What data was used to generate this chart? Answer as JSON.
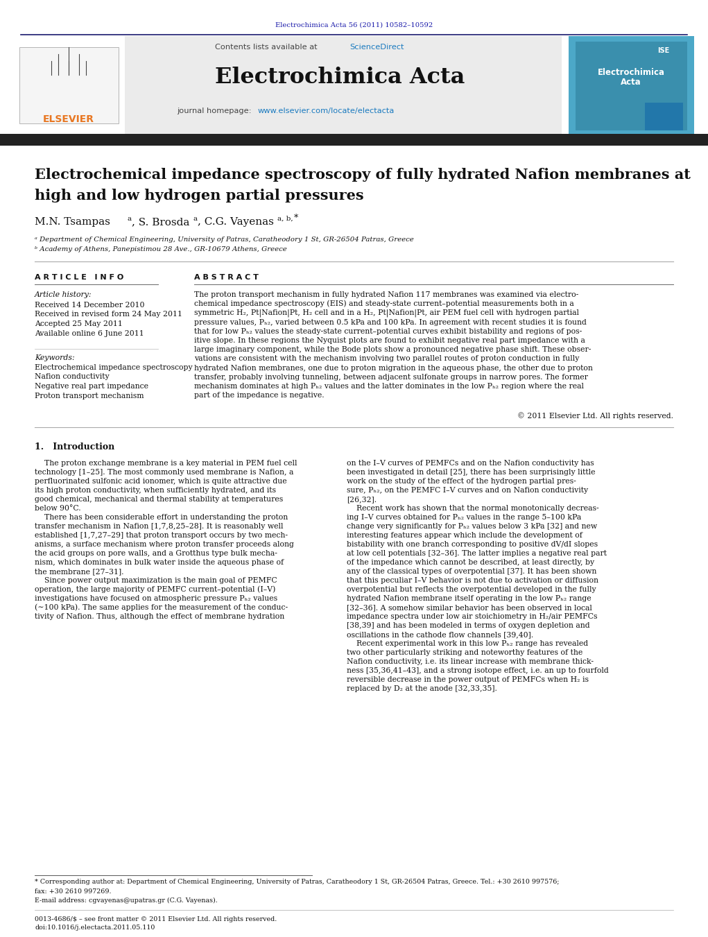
{
  "journal_ref": "Electrochimica Acta 56 (2011) 10582–10592",
  "journal_ref_color": "#1a1aaa",
  "contents_text": "Contents lists available at ",
  "sciencedirect_text": "ScienceDirect",
  "sciencedirect_color": "#1a7abf",
  "journal_name": "Electrochimica Acta",
  "journal_homepage_prefix": "journal homepage: ",
  "journal_homepage_url": "www.elsevier.com/locate/electacta",
  "journal_homepage_url_color": "#1a7abf",
  "header_bg": "#e8e8e8",
  "dark_bar_color": "#333333",
  "paper_title_line1": "Electrochemical impedance spectroscopy of fully hydrated Nafion membranes at",
  "paper_title_line2": "high and low hydrogen partial pressures",
  "article_info_header": "A R T I C L E   I N F O",
  "abstract_header": "A B S T R A C T",
  "article_history_label": "Article history:",
  "received_1": "Received 14 December 2010",
  "received_revised": "Received in revised form 24 May 2011",
  "accepted": "Accepted 25 May 2011",
  "available_online": "Available online 6 June 2011",
  "keywords_label": "Keywords:",
  "keyword_1": "Electrochemical impedance spectroscopy",
  "keyword_2": "Nafion conductivity",
  "keyword_3": "Negative real part impedance",
  "keyword_4": "Proton transport mechanism",
  "abstract_lines": [
    "The proton transport mechanism in fully hydrated Nafion 117 membranes was examined via electro-",
    "chemical impedance spectroscopy (EIS) and steady-state current–potential measurements both in a",
    "symmetric H₂, Pt|Nafion|Pt, H₂ cell and in a H₂, Pt|Nafion|Pt, air PEM fuel cell with hydrogen partial",
    "pressure values, Pₕ₂, varied between 0.5 kPa and 100 kPa. In agreement with recent studies it is found",
    "that for low Pₕ₂ values the steady-state current–potential curves exhibit bistability and regions of pos-",
    "itive slope. In these regions the Nyquist plots are found to exhibit negative real part impedance with a",
    "large imaginary component, while the Bode plots show a pronounced negative phase shift. These obser-",
    "vations are consistent with the mechanism involving two parallel routes of proton conduction in fully",
    "hydrated Nafion membranes, one due to proton migration in the aqueous phase, the other due to proton",
    "transfer, probably involving tunneling, between adjacent sulfonate groups in narrow pores. The former",
    "mechanism dominates at high Pₕ₂ values and the latter dominates in the low Pₕ₂ region where the real",
    "part of the impedance is negative."
  ],
  "copyright": "© 2011 Elsevier Ltd. All rights reserved.",
  "intro_header": "1.   Introduction",
  "intro_col1_lines": [
    "    The proton exchange membrane is a key material in PEM fuel cell",
    "technology [1–25]. The most commonly used membrane is Nafion, a",
    "perfluorinated sulfonic acid ionomer, which is quite attractive due",
    "its high proton conductivity, when sufficiently hydrated, and its",
    "good chemical, mechanical and thermal stability at temperatures",
    "below 90°C.",
    "    There has been considerable effort in understanding the proton",
    "transfer mechanism in Nafion [1,7,8,25–28]. It is reasonably well",
    "established [1,7,27–29] that proton transport occurs by two mech-",
    "anisms, a surface mechanism where proton transfer proceeds along",
    "the acid groups on pore walls, and a Grotthus type bulk mecha-",
    "nism, which dominates in bulk water inside the aqueous phase of",
    "the membrane [27–31].",
    "    Since power output maximization is the main goal of PEMFC",
    "operation, the large majority of PEMFC current–potential (I–V)",
    "investigations have focused on atmospheric pressure Pₕ₂ values",
    "(∼100 kPa). The same applies for the measurement of the conduc-",
    "tivity of Nafion. Thus, although the effect of membrane hydration"
  ],
  "intro_col2_lines": [
    "on the I–V curves of PEMFCs and on the Nafion conductivity has",
    "been investigated in detail [25], there has been surprisingly little",
    "work on the study of the effect of the hydrogen partial pres-",
    "sure, Pₕ₂, on the PEMFC I–V curves and on Nafion conductivity",
    "[26,32].",
    "    Recent work has shown that the normal monotonically decreas-",
    "ing I–V curves obtained for Pₕ₂ values in the range 5–100 kPa",
    "change very significantly for Pₕ₂ values below 3 kPa [32] and new",
    "interesting features appear which include the development of",
    "bistability with one branch corresponding to positive dV/dI slopes",
    "at low cell potentials [32–36]. The latter implies a negative real part",
    "of the impedance which cannot be described, at least directly, by",
    "any of the classical types of overpotential [37]. It has been shown",
    "that this peculiar I–V behavior is not due to activation or diffusion",
    "overpotential but reflects the overpotential developed in the fully",
    "hydrated Nafion membrane itself operating in the low Pₕ₂ range",
    "[32–36]. A somehow similar behavior has been observed in local",
    "impedance spectra under low air stoichiometry in H₂/air PEMFCs",
    "[38,39] and has been modeled in terms of oxygen depletion and",
    "oscillations in the cathode flow channels [39,40].",
    "    Recent experimental work in this low Pₕ₂ range has revealed",
    "two other particularly striking and noteworthy features of the",
    "Nafion conductivity, i.e. its linear increase with membrane thick-",
    "ness [35,36,41–43], and a strong isotope effect, i.e. an up to fourfold",
    "reversible decrease in the power output of PEMFCs when H₂ is",
    "replaced by D₂ at the anode [32,33,35]."
  ],
  "footnote_line1": "* Corresponding author at: Department of Chemical Engineering, University of Patras, Caratheodory 1 St, GR-26504 Patras, Greece. Tel.: +30 2610 997576;",
  "footnote_line2": "fax: +30 2610 997269.",
  "footnote_email": "E-mail address: cgvayenas@upatras.gr (C.G. Vayenas).",
  "issn_line": "0013-4686/$ – see front matter © 2011 Elsevier Ltd. All rights reserved.",
  "doi_line": "doi:10.1016/j.electacta.2011.05.110",
  "bg_color": "#ffffff",
  "text_color": "#111111",
  "link_color": "#1a7abf"
}
